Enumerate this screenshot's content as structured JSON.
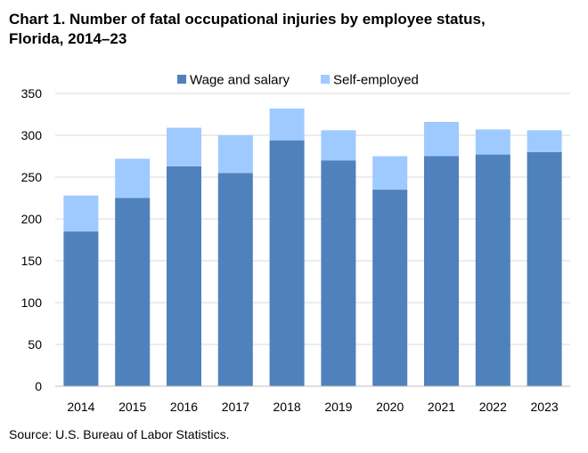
{
  "chart_data": {
    "type": "bar",
    "stacked": true,
    "title_line1": "Chart 1. Number of fatal occupational injuries by employee status,",
    "title_line2": "Florida, 2014–23",
    "categories": [
      "2014",
      "2015",
      "2016",
      "2017",
      "2018",
      "2019",
      "2020",
      "2021",
      "2022",
      "2023"
    ],
    "series": [
      {
        "name": "Wage and salary",
        "color": "#4f81bd",
        "values": [
          185,
          225,
          263,
          255,
          294,
          270,
          235,
          275,
          277,
          280
        ]
      },
      {
        "name": "Self-employed",
        "color": "#9fcaff",
        "values": [
          43,
          47,
          46,
          45,
          38,
          36,
          40,
          41,
          30,
          26
        ]
      }
    ],
    "ylim": [
      0,
      350
    ],
    "yticks": [
      0,
      50,
      100,
      150,
      200,
      250,
      300,
      350
    ],
    "grid": true,
    "legend_position": "top-center",
    "source": "Source: U.S. Bureau of Labor Statistics."
  }
}
